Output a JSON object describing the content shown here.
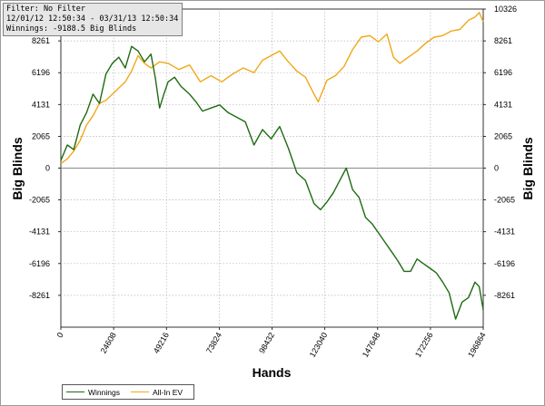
{
  "info_box": {
    "filter": "Filter: No Filter",
    "date_range": "12/01/12 12:50:34 - 03/31/13 12:50:34",
    "winnings_text": "Winnings: -9188.5 Big Blinds"
  },
  "colors": {
    "winnings": "#1e6b12",
    "all_in_ev": "#f0a818",
    "grid": "#b4b4b4",
    "zero_line": "#8a8a8a"
  },
  "legend": [
    {
      "name": "Winnings",
      "color": "#1e6b12"
    },
    {
      "name": "All-In EV",
      "color": "#f0a818"
    }
  ],
  "chart_data": {
    "type": "line",
    "xlabel": "Hands",
    "ylabel_left": "Big Blinds",
    "ylabel_right": "Big Blinds",
    "xlim": [
      0,
      196864
    ],
    "ylim": [
      -10326,
      10326
    ],
    "x_ticks": [
      "0",
      "24608",
      "49216",
      "73824",
      "98432",
      "123040",
      "147648",
      "172256",
      "196864"
    ],
    "y_ticks_left": [
      "8261",
      "6196",
      "4131",
      "2065",
      "0",
      "-2065",
      "-4131",
      "-6196",
      "-8261"
    ],
    "y_ticks_right": [
      "10326",
      "8261",
      "6196",
      "4131",
      "2065",
      "0",
      "-2065",
      "-4131",
      "-6196",
      "-8261"
    ],
    "grid": true,
    "legend_position": "bottom-left",
    "series": [
      {
        "name": "Winnings",
        "x": [
          0,
          3000,
          6000,
          9000,
          12000,
          15000,
          18000,
          21000,
          24000,
          27000,
          30000,
          33000,
          36000,
          39000,
          42000,
          44000,
          46000,
          48000,
          50000,
          53000,
          56000,
          60000,
          63000,
          66000,
          70000,
          74000,
          78000,
          82000,
          86000,
          90000,
          94000,
          98000,
          102000,
          106000,
          110000,
          114000,
          118000,
          121000,
          124000,
          127000,
          130000,
          133000,
          136000,
          139000,
          142000,
          145000,
          148000,
          151000,
          154000,
          157000,
          160000,
          163000,
          166000,
          169000,
          172000,
          175000,
          178000,
          181000,
          184000,
          187000,
          190000,
          193000,
          195000,
          196864
        ],
        "y": [
          500,
          1500,
          1200,
          2800,
          3600,
          4800,
          4200,
          6100,
          6800,
          7200,
          6500,
          7900,
          7600,
          6900,
          7400,
          5900,
          3900,
          4800,
          5600,
          5900,
          5300,
          4800,
          4300,
          3700,
          3900,
          4100,
          3600,
          3300,
          3000,
          1500,
          2500,
          1900,
          2700,
          1300,
          -300,
          -800,
          -2300,
          -2700,
          -2200,
          -1600,
          -800,
          0,
          -1400,
          -1900,
          -3200,
          -3600,
          -4200,
          -4800,
          -5400,
          -6000,
          -6700,
          -6700,
          -5900,
          -6200,
          -6500,
          -6800,
          -7400,
          -8100,
          -9800,
          -8700,
          -8400,
          -7400,
          -7700,
          -9200
        ]
      },
      {
        "name": "All-In EV",
        "x": [
          0,
          3000,
          6000,
          9000,
          12000,
          15000,
          18000,
          21000,
          24000,
          27000,
          30000,
          33000,
          36000,
          39000,
          42000,
          46000,
          50000,
          55000,
          60000,
          65000,
          70000,
          75000,
          80000,
          85000,
          90000,
          94000,
          98000,
          102000,
          106000,
          110000,
          114000,
          118000,
          120000,
          124000,
          128000,
          132000,
          136000,
          140000,
          144000,
          148000,
          152000,
          155000,
          158000,
          162000,
          166000,
          170000,
          174000,
          178000,
          182000,
          186000,
          190000,
          193000,
          195000,
          196864
        ],
        "y": [
          300,
          600,
          1100,
          1800,
          2800,
          3400,
          4200,
          4400,
          4800,
          5200,
          5600,
          6300,
          7300,
          6800,
          6500,
          6900,
          6800,
          6400,
          6700,
          5600,
          6000,
          5600,
          6100,
          6500,
          6200,
          7000,
          7300,
          7600,
          6900,
          6300,
          5900,
          4800,
          4300,
          5700,
          6000,
          6600,
          7700,
          8500,
          8600,
          8200,
          8700,
          7200,
          6800,
          7200,
          7600,
          8100,
          8500,
          8600,
          8900,
          9000,
          9600,
          9800,
          10100,
          9500
        ]
      }
    ]
  }
}
